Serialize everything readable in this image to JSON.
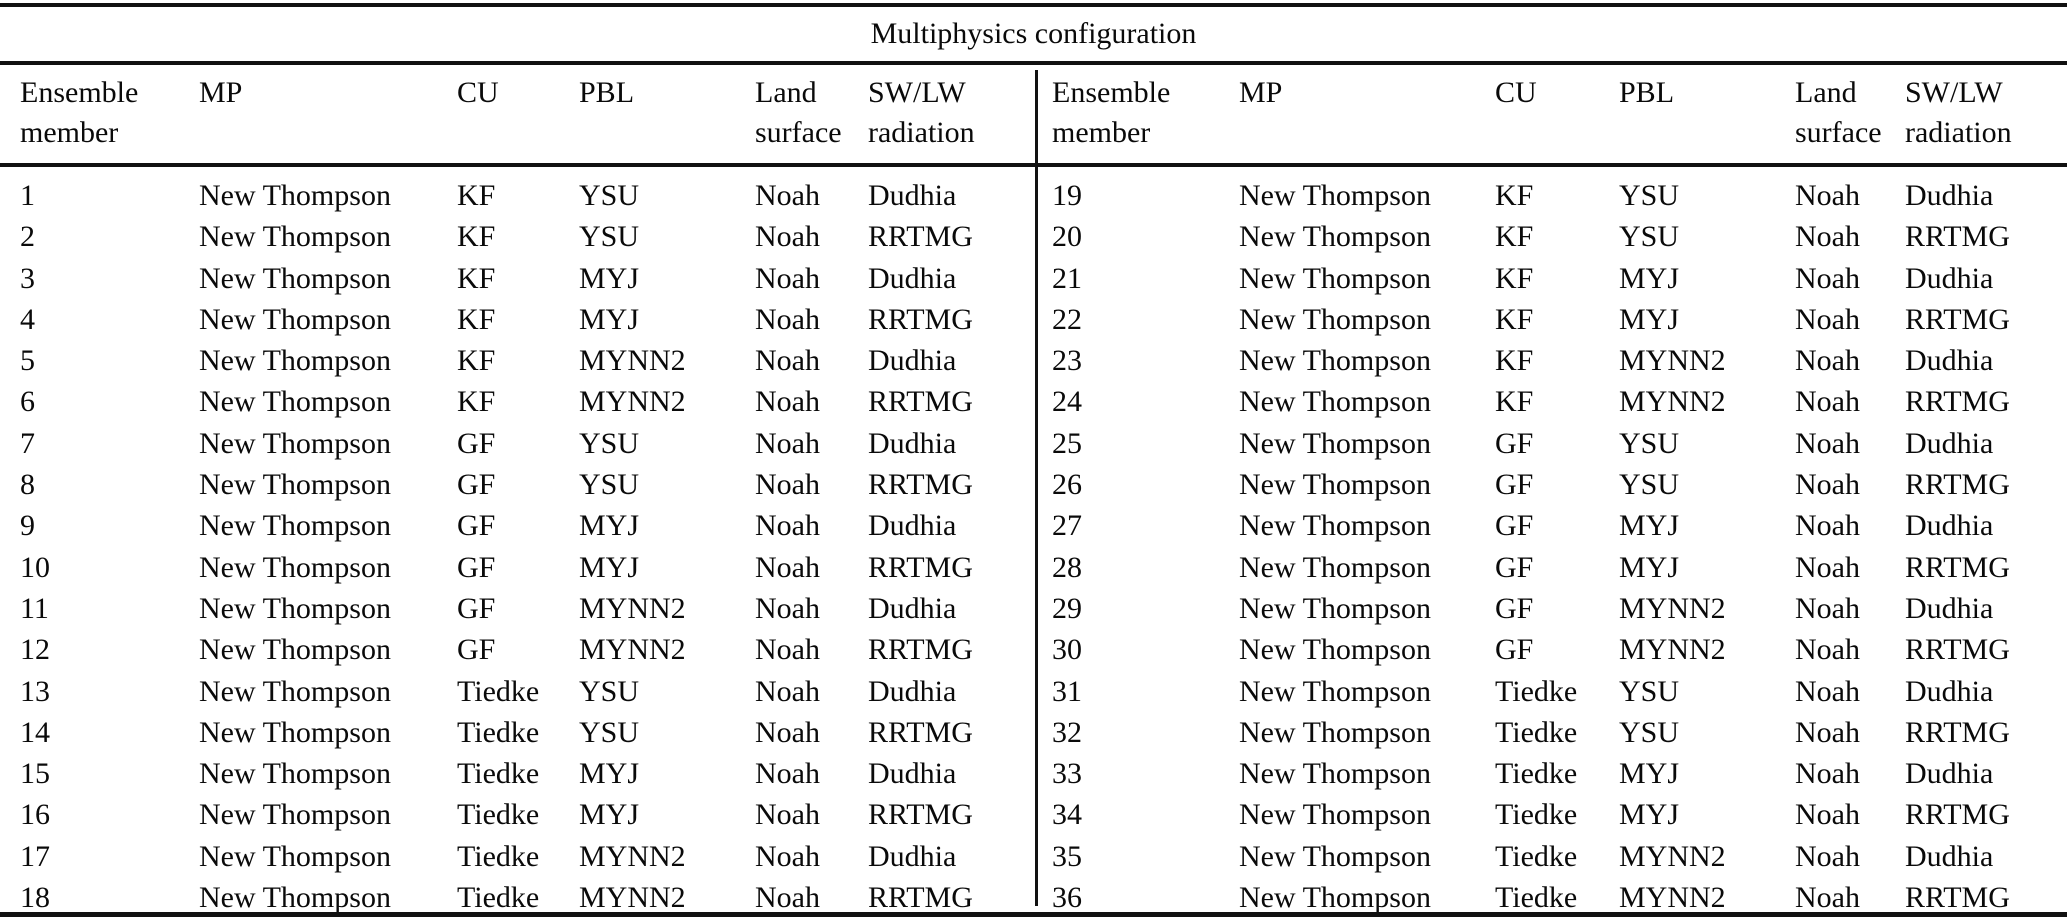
{
  "table": {
    "title": "Multiphysics configuration",
    "columns": [
      {
        "id": "member",
        "line1": "Ensemble",
        "line2": "member"
      },
      {
        "id": "mp",
        "line1": "MP",
        "line2": ""
      },
      {
        "id": "cu",
        "line1": "CU",
        "line2": ""
      },
      {
        "id": "pbl",
        "line1": "PBL",
        "line2": ""
      },
      {
        "id": "land",
        "line1": "Land",
        "line2": "surface"
      },
      {
        "id": "swlw",
        "line1": "SW/LW",
        "line2": "radiation"
      }
    ],
    "rows_left": [
      {
        "member": "1",
        "mp": "New Thompson",
        "cu": "KF",
        "pbl": "YSU",
        "land": "Noah",
        "swlw": "Dudhia"
      },
      {
        "member": "2",
        "mp": "New Thompson",
        "cu": "KF",
        "pbl": "YSU",
        "land": "Noah",
        "swlw": "RRTMG"
      },
      {
        "member": "3",
        "mp": "New Thompson",
        "cu": "KF",
        "pbl": "MYJ",
        "land": "Noah",
        "swlw": "Dudhia"
      },
      {
        "member": "4",
        "mp": "New Thompson",
        "cu": "KF",
        "pbl": "MYJ",
        "land": "Noah",
        "swlw": "RRTMG"
      },
      {
        "member": "5",
        "mp": "New Thompson",
        "cu": "KF",
        "pbl": "MYNN2",
        "land": "Noah",
        "swlw": "Dudhia"
      },
      {
        "member": "6",
        "mp": "New Thompson",
        "cu": "KF",
        "pbl": "MYNN2",
        "land": "Noah",
        "swlw": "RRTMG"
      },
      {
        "member": "7",
        "mp": "New Thompson",
        "cu": "GF",
        "pbl": "YSU",
        "land": "Noah",
        "swlw": "Dudhia"
      },
      {
        "member": "8",
        "mp": "New Thompson",
        "cu": "GF",
        "pbl": "YSU",
        "land": "Noah",
        "swlw": "RRTMG"
      },
      {
        "member": "9",
        "mp": "New Thompson",
        "cu": "GF",
        "pbl": "MYJ",
        "land": "Noah",
        "swlw": "Dudhia"
      },
      {
        "member": "10",
        "mp": "New Thompson",
        "cu": "GF",
        "pbl": "MYJ",
        "land": "Noah",
        "swlw": "RRTMG"
      },
      {
        "member": "11",
        "mp": "New Thompson",
        "cu": "GF",
        "pbl": "MYNN2",
        "land": "Noah",
        "swlw": "Dudhia"
      },
      {
        "member": "12",
        "mp": "New Thompson",
        "cu": "GF",
        "pbl": "MYNN2",
        "land": "Noah",
        "swlw": "RRTMG"
      },
      {
        "member": "13",
        "mp": "New Thompson",
        "cu": "Tiedke",
        "pbl": "YSU",
        "land": "Noah",
        "swlw": "Dudhia"
      },
      {
        "member": "14",
        "mp": "New Thompson",
        "cu": "Tiedke",
        "pbl": "YSU",
        "land": "Noah",
        "swlw": "RRTMG"
      },
      {
        "member": "15",
        "mp": "New Thompson",
        "cu": "Tiedke",
        "pbl": "MYJ",
        "land": "Noah",
        "swlw": "Dudhia"
      },
      {
        "member": "16",
        "mp": "New Thompson",
        "cu": "Tiedke",
        "pbl": "MYJ",
        "land": "Noah",
        "swlw": "RRTMG"
      },
      {
        "member": "17",
        "mp": "New Thompson",
        "cu": "Tiedke",
        "pbl": "MYNN2",
        "land": "Noah",
        "swlw": "Dudhia"
      },
      {
        "member": "18",
        "mp": "New Thompson",
        "cu": "Tiedke",
        "pbl": "MYNN2",
        "land": "Noah",
        "swlw": "RRTMG"
      }
    ],
    "rows_right": [
      {
        "member": "19",
        "mp": "New Thompson",
        "cu": "KF",
        "pbl": "YSU",
        "land": "Noah",
        "swlw": "Dudhia"
      },
      {
        "member": "20",
        "mp": "New Thompson",
        "cu": "KF",
        "pbl": "YSU",
        "land": "Noah",
        "swlw": "RRTMG"
      },
      {
        "member": "21",
        "mp": "New Thompson",
        "cu": "KF",
        "pbl": "MYJ",
        "land": "Noah",
        "swlw": "Dudhia"
      },
      {
        "member": "22",
        "mp": "New Thompson",
        "cu": "KF",
        "pbl": "MYJ",
        "land": "Noah",
        "swlw": "RRTMG"
      },
      {
        "member": "23",
        "mp": "New Thompson",
        "cu": "KF",
        "pbl": "MYNN2",
        "land": "Noah",
        "swlw": "Dudhia"
      },
      {
        "member": "24",
        "mp": "New Thompson",
        "cu": "KF",
        "pbl": "MYNN2",
        "land": "Noah",
        "swlw": "RRTMG"
      },
      {
        "member": "25",
        "mp": "New Thompson",
        "cu": "GF",
        "pbl": "YSU",
        "land": "Noah",
        "swlw": "Dudhia"
      },
      {
        "member": "26",
        "mp": "New Thompson",
        "cu": "GF",
        "pbl": "YSU",
        "land": "Noah",
        "swlw": "RRTMG"
      },
      {
        "member": "27",
        "mp": "New Thompson",
        "cu": "GF",
        "pbl": "MYJ",
        "land": "Noah",
        "swlw": "Dudhia"
      },
      {
        "member": "28",
        "mp": "New Thompson",
        "cu": "GF",
        "pbl": "MYJ",
        "land": "Noah",
        "swlw": "RRTMG"
      },
      {
        "member": "29",
        "mp": "New Thompson",
        "cu": "GF",
        "pbl": "MYNN2",
        "land": "Noah",
        "swlw": "Dudhia"
      },
      {
        "member": "30",
        "mp": "New Thompson",
        "cu": "GF",
        "pbl": "MYNN2",
        "land": "Noah",
        "swlw": "RRTMG"
      },
      {
        "member": "31",
        "mp": "New Thompson",
        "cu": "Tiedke",
        "pbl": "YSU",
        "land": "Noah",
        "swlw": "Dudhia"
      },
      {
        "member": "32",
        "mp": "New Thompson",
        "cu": "Tiedke",
        "pbl": "YSU",
        "land": "Noah",
        "swlw": "RRTMG"
      },
      {
        "member": "33",
        "mp": "New Thompson",
        "cu": "Tiedke",
        "pbl": "MYJ",
        "land": "Noah",
        "swlw": "Dudhia"
      },
      {
        "member": "34",
        "mp": "New Thompson",
        "cu": "Tiedke",
        "pbl": "MYJ",
        "land": "Noah",
        "swlw": "RRTMG"
      },
      {
        "member": "35",
        "mp": "New Thompson",
        "cu": "Tiedke",
        "pbl": "MYNN2",
        "land": "Noah",
        "swlw": "Dudhia"
      },
      {
        "member": "36",
        "mp": "New Thompson",
        "cu": "Tiedke",
        "pbl": "MYNN2",
        "land": "Noah",
        "swlw": "RRTMG"
      }
    ]
  }
}
